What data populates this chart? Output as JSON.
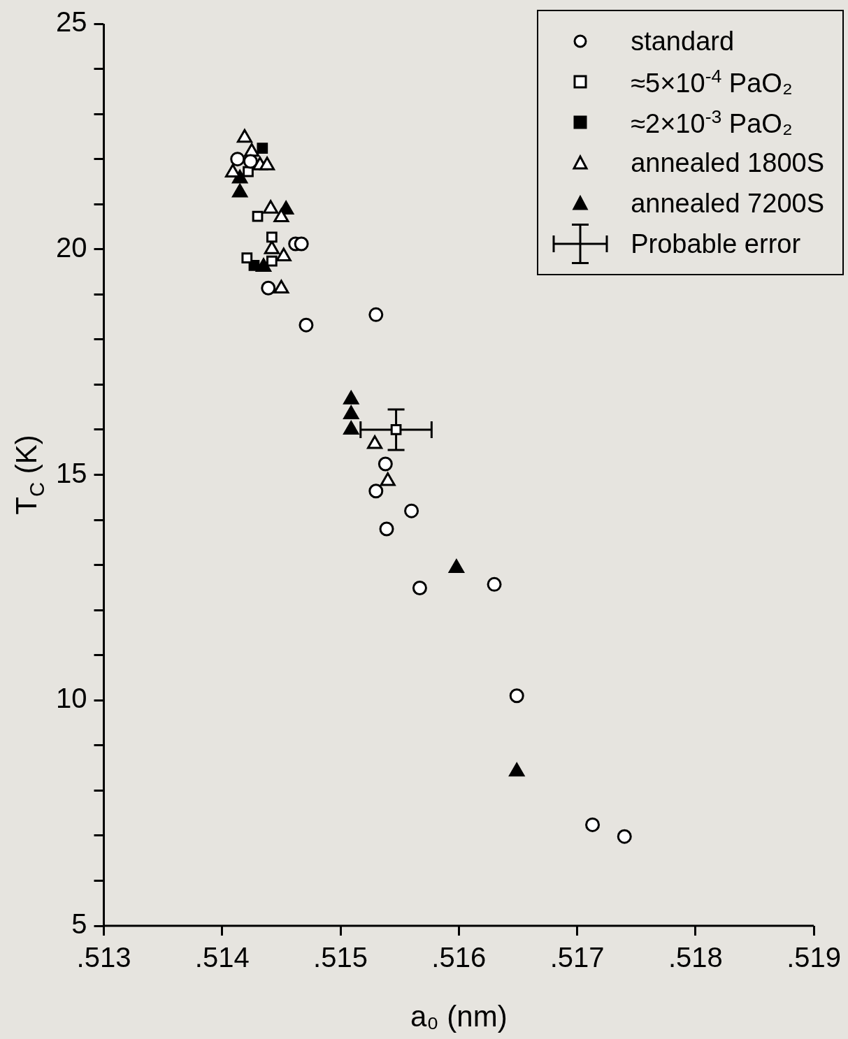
{
  "chart_data": {
    "type": "scatter",
    "xlabel": "a₀ (nm)",
    "ylabel": "T$_{C}$ (K)",
    "xlim": [
      0.513,
      0.519
    ],
    "xticks": [
      {
        "value": 0.513,
        "label": ".513"
      },
      {
        "value": 0.514,
        "label": ".514"
      },
      {
        "value": 0.515,
        "label": ".515"
      },
      {
        "value": 0.516,
        "label": ".516"
      },
      {
        "value": 0.517,
        "label": ".517"
      },
      {
        "value": 0.518,
        "label": ".518"
      },
      {
        "value": 0.519,
        "label": ".519"
      }
    ],
    "ylim": [
      5,
      25
    ],
    "yticks": [
      5,
      {
        "value": 6,
        "label": null
      },
      {
        "value": 7,
        "label": null
      },
      {
        "value": 8,
        "label": null
      },
      {
        "value": 9,
        "label": null
      },
      10,
      {
        "value": 11,
        "label": null
      },
      {
        "value": 12,
        "label": null
      },
      {
        "value": 13,
        "label": null
      },
      {
        "value": 14,
        "label": null
      },
      15,
      {
        "value": 16,
        "label": null
      },
      {
        "value": 17,
        "label": null
      },
      {
        "value": 18,
        "label": null
      },
      {
        "value": 19,
        "label": null
      },
      20,
      {
        "value": 21,
        "label": null
      },
      {
        "value": 22,
        "label": null
      },
      {
        "value": 23,
        "label": null
      },
      {
        "value": 24,
        "label": null
      },
      25
    ],
    "grid": false,
    "legend": "top right",
    "series": [
      {
        "name": "standard",
        "color": "#ffffff",
        "marker": "circle",
        "x": [
          0.51413,
          0.51424,
          0.51439,
          0.51462,
          0.51467,
          0.51471,
          0.5153,
          0.51538,
          0.5153,
          0.51539,
          0.5156,
          0.51567,
          0.5163,
          0.51649,
          0.51713,
          0.5174
        ],
        "values": [
          22.0,
          21.95,
          19.14,
          20.12,
          20.12,
          18.32,
          18.55,
          15.24,
          14.64,
          13.8,
          14.2,
          12.49,
          12.57,
          10.1,
          7.24,
          6.98
        ]
      },
      {
        "name": "≈5×10$^{-4}$ PaO₂",
        "color": "#ffffff",
        "marker": "square",
        "x": [
          0.51422,
          0.5143,
          0.51442,
          0.51421,
          0.51442
        ],
        "values": [
          21.72,
          20.73,
          20.27,
          19.81,
          19.74
        ]
      },
      {
        "name": "≈2×10$^{-3}$ PaO₂",
        "color": "#000000",
        "marker": "square",
        "x": [
          0.51434,
          0.51427
        ],
        "values": [
          22.24,
          19.64
        ]
      },
      {
        "name": "annealed 1800S",
        "color": "#ffffff",
        "marker": "triangle",
        "x": [
          0.51419,
          0.51425,
          0.51409,
          0.51432,
          0.51438,
          0.51441,
          0.5145,
          0.51442,
          0.51452,
          0.5145,
          0.51529,
          0.5154
        ],
        "values": [
          22.47,
          22.16,
          21.7,
          21.86,
          21.86,
          20.9,
          20.71,
          20.0,
          19.84,
          19.13,
          15.68,
          14.86
        ]
      },
      {
        "name": "annealed 7200S",
        "color": "#000000",
        "marker": "triangle",
        "x": [
          0.51415,
          0.51415,
          0.51454,
          0.51435,
          0.51509,
          0.51509,
          0.51509,
          0.51598,
          0.51649
        ],
        "values": [
          21.57,
          21.26,
          20.88,
          19.61,
          16.67,
          16.34,
          16.0,
          12.93,
          8.42
        ]
      },
      {
        "name": "Probable error",
        "color": "#ffffff",
        "marker": "square",
        "x": [
          0.51547
        ],
        "values": [
          16.0
        ],
        "errors": [
          0.45
        ],
        "xerrors": [
          0.0003
        ]
      }
    ]
  }
}
